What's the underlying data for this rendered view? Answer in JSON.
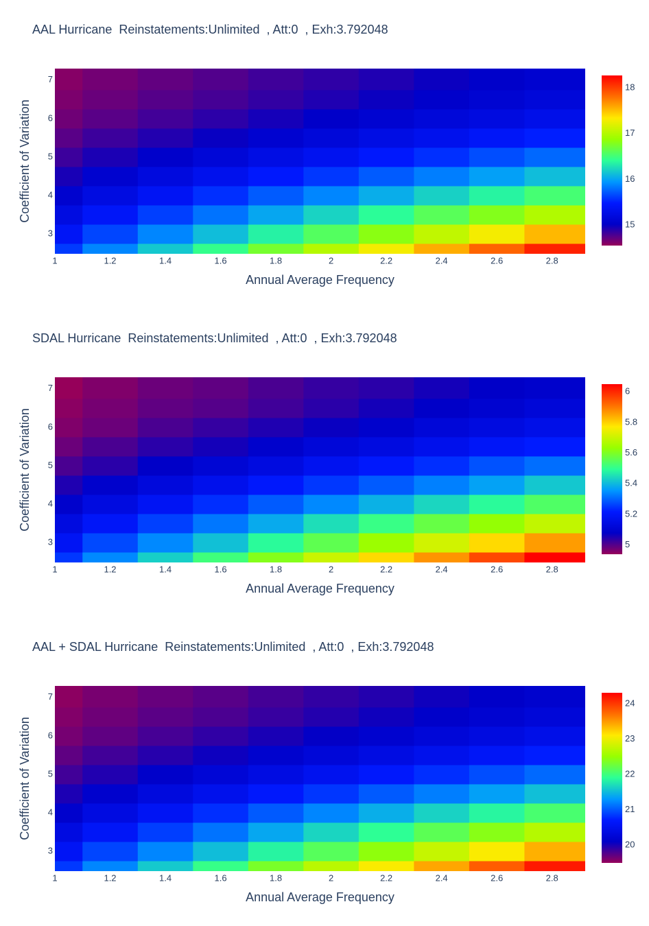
{
  "chart_data": [
    {
      "type": "heatmap",
      "title": "AAL Hurricane  Reinstatements:Unlimited  , Att:0  , Exh:3.792048",
      "x_label": "Annual Average Frequency",
      "y_label": "Coefficient of Variation",
      "x": [
        1,
        1.2,
        1.4,
        1.6,
        1.8,
        2,
        2.2,
        2.4,
        2.6,
        2.8
      ],
      "y": [
        2.5,
        3,
        3.5,
        4,
        4.5,
        5,
        5.5,
        6,
        6.5,
        7
      ],
      "z": [
        [
          15.6,
          15.88,
          16.16,
          16.44,
          16.73,
          17.01,
          17.29,
          17.57,
          17.85,
          18.13
        ],
        [
          15.4,
          15.64,
          15.88,
          16.11,
          16.35,
          16.58,
          16.82,
          17.06,
          17.29,
          17.53
        ],
        [
          15.23,
          15.42,
          15.62,
          15.81,
          16.01,
          16.21,
          16.4,
          16.6,
          16.79,
          16.99
        ],
        [
          15.07,
          15.23,
          15.39,
          15.56,
          15.72,
          15.88,
          16.04,
          16.2,
          16.36,
          16.52
        ],
        [
          14.94,
          15.07,
          15.2,
          15.33,
          15.46,
          15.59,
          15.72,
          15.85,
          15.98,
          16.11
        ],
        [
          14.83,
          14.93,
          15.04,
          15.14,
          15.25,
          15.35,
          15.46,
          15.56,
          15.67,
          15.77
        ],
        [
          14.74,
          14.83,
          14.91,
          14.99,
          15.08,
          15.16,
          15.25,
          15.33,
          15.42,
          15.5
        ],
        [
          14.67,
          14.74,
          14.81,
          14.88,
          14.95,
          15.02,
          15.09,
          15.16,
          15.22,
          15.29
        ],
        [
          14.63,
          14.69,
          14.75,
          14.8,
          14.86,
          14.92,
          14.98,
          15.04,
          15.1,
          15.16
        ],
        [
          14.6,
          14.66,
          14.71,
          14.76,
          14.82,
          14.87,
          14.92,
          14.98,
          15.03,
          15.08
        ]
      ],
      "xlim": [
        1,
        2.92
      ],
      "ylim": [
        2.48,
        7.3
      ],
      "xticks": [
        1,
        1.2,
        1.4,
        1.6,
        1.8,
        2,
        2.2,
        2.4,
        2.6,
        2.8
      ],
      "yticks": [
        3,
        4,
        5,
        6,
        7
      ],
      "zlim": [
        14.55,
        18.27
      ],
      "zticks": [
        15,
        16,
        17,
        18
      ],
      "colorscale": [
        "#96005a",
        "#0000c8",
        "#0019ff",
        "#0098ff",
        "#2cff96",
        "#97ff00",
        "#ffea00",
        "#ff6f00",
        "#ff0000"
      ]
    },
    {
      "type": "heatmap",
      "title": "SDAL Hurricane  Reinstatements:Unlimited  , Att:0  , Exh:3.792048",
      "x_label": "Annual Average Frequency",
      "y_label": "Coefficient of Variation",
      "x": [
        1,
        1.2,
        1.4,
        1.6,
        1.8,
        2,
        2.2,
        2.4,
        2.6,
        2.8
      ],
      "y": [
        2.5,
        3,
        3.5,
        4,
        4.5,
        5,
        5.5,
        6,
        6.5,
        7
      ],
      "z": [
        [
          5.25,
          5.34,
          5.43,
          5.52,
          5.61,
          5.7,
          5.79,
          5.87,
          5.96,
          6.05
        ],
        [
          5.19,
          5.27,
          5.34,
          5.41,
          5.49,
          5.56,
          5.64,
          5.71,
          5.79,
          5.86
        ],
        [
          5.14,
          5.2,
          5.26,
          5.32,
          5.38,
          5.45,
          5.51,
          5.57,
          5.63,
          5.69
        ],
        [
          5.09,
          5.14,
          5.19,
          5.24,
          5.29,
          5.34,
          5.39,
          5.44,
          5.49,
          5.54
        ],
        [
          5.05,
          5.09,
          5.13,
          5.17,
          5.21,
          5.25,
          5.29,
          5.33,
          5.37,
          5.42
        ],
        [
          5.01,
          5.04,
          5.08,
          5.11,
          5.14,
          5.18,
          5.21,
          5.24,
          5.28,
          5.31
        ],
        [
          4.98,
          5.01,
          5.04,
          5.06,
          5.09,
          5.12,
          5.14,
          5.17,
          5.2,
          5.22
        ],
        [
          4.96,
          4.98,
          5.01,
          5.03,
          5.05,
          5.07,
          5.09,
          5.12,
          5.14,
          5.16
        ],
        [
          4.95,
          4.97,
          4.99,
          5,
          5.02,
          5.04,
          5.06,
          5.08,
          5.1,
          5.12
        ],
        [
          4.94,
          4.96,
          4.98,
          4.99,
          5.01,
          5.03,
          5.04,
          5.06,
          5.08,
          5.09
        ]
      ],
      "xlim": [
        1,
        2.92
      ],
      "ylim": [
        2.48,
        7.3
      ],
      "xticks": [
        1,
        1.2,
        1.4,
        1.6,
        1.8,
        2,
        2.2,
        2.4,
        2.6,
        2.8
      ],
      "yticks": [
        3,
        4,
        5,
        6,
        7
      ],
      "zlim": [
        4.94,
        6.05
      ],
      "zticks": [
        5,
        5.2,
        5.4,
        5.6,
        5.8,
        6
      ],
      "colorscale": [
        "#96005a",
        "#0000c8",
        "#0019ff",
        "#0098ff",
        "#2cff96",
        "#97ff00",
        "#ffea00",
        "#ff6f00",
        "#ff0000"
      ]
    },
    {
      "type": "heatmap",
      "title": "AAL + SDAL Hurricane  Reinstatements:Unlimited  , Att:0  , Exh:3.792048",
      "x_label": "Annual Average Frequency",
      "y_label": "Coefficient of Variation",
      "x": [
        1,
        1.2,
        1.4,
        1.6,
        1.8,
        2,
        2.2,
        2.4,
        2.6,
        2.8
      ],
      "y": [
        2.5,
        3,
        3.5,
        4,
        4.5,
        5,
        5.5,
        6,
        6.5,
        7
      ],
      "z": [
        [
          20.85,
          21.22,
          21.59,
          21.96,
          22.34,
          22.71,
          23.08,
          23.44,
          23.81,
          24.18
        ],
        [
          20.59,
          20.91,
          21.22,
          21.52,
          21.84,
          22.14,
          22.46,
          22.77,
          23.08,
          23.39
        ],
        [
          20.37,
          20.62,
          20.88,
          21.13,
          21.39,
          21.66,
          21.91,
          22.17,
          22.42,
          22.68
        ],
        [
          20.16,
          20.37,
          20.58,
          20.8,
          21.01,
          21.22,
          21.43,
          21.64,
          21.85,
          22.06
        ],
        [
          19.99,
          20.16,
          20.33,
          20.5,
          20.67,
          20.84,
          21.01,
          21.18,
          21.35,
          21.53
        ],
        [
          19.84,
          19.97,
          20.12,
          20.25,
          20.39,
          20.53,
          20.67,
          20.8,
          20.95,
          21.08
        ],
        [
          19.72,
          19.84,
          19.95,
          20.05,
          20.17,
          20.28,
          20.39,
          20.5,
          20.62,
          20.72
        ],
        [
          19.63,
          19.72,
          19.82,
          19.91,
          20,
          20.09,
          20.18,
          20.28,
          20.36,
          20.45
        ],
        [
          19.58,
          19.66,
          19.74,
          19.8,
          19.88,
          19.96,
          20.04,
          20.12,
          20.2,
          20.28
        ],
        [
          19.54,
          19.62,
          19.69,
          19.75,
          19.83,
          19.9,
          19.96,
          20.04,
          20.11,
          20.17
        ]
      ],
      "xlim": [
        1,
        2.92
      ],
      "ylim": [
        2.48,
        7.3
      ],
      "xticks": [
        1,
        1.2,
        1.4,
        1.6,
        1.8,
        2,
        2.2,
        2.4,
        2.6,
        2.8
      ],
      "yticks": [
        3,
        4,
        5,
        6,
        7
      ],
      "zlim": [
        19.5,
        24.31
      ],
      "zticks": [
        20,
        21,
        22,
        23,
        24
      ],
      "colorscale": [
        "#96005a",
        "#0000c8",
        "#0019ff",
        "#0098ff",
        "#2cff96",
        "#97ff00",
        "#ffea00",
        "#ff6f00",
        "#ff0000"
      ]
    }
  ]
}
